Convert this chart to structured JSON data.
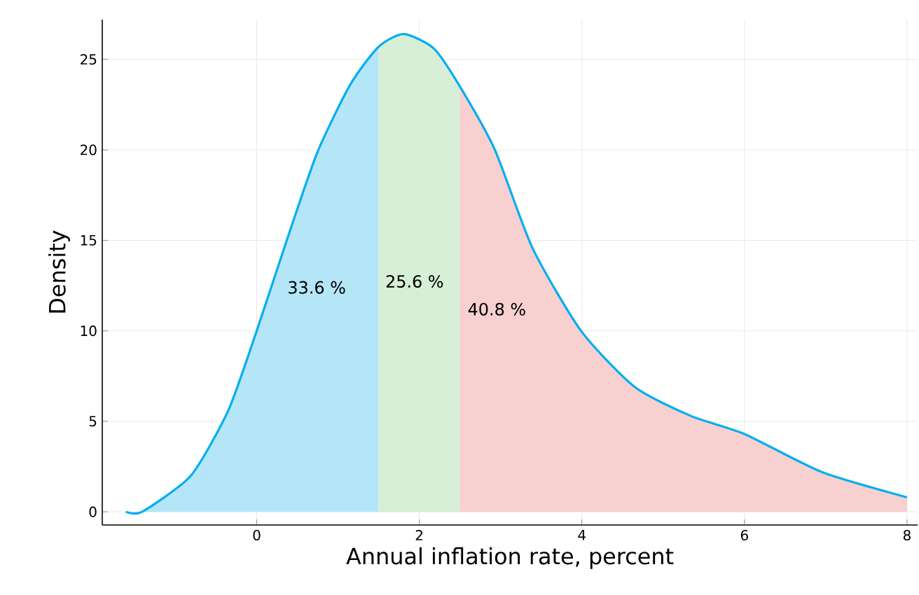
{
  "chart_data": {
    "type": "area",
    "xlabel": "Annual inflation rate, percent",
    "ylabel": "Density",
    "xlim": [
      -1.9,
      8.13
    ],
    "ylim": [
      -0.73,
      27.2
    ],
    "xticks": [
      0,
      2,
      4,
      6,
      8
    ],
    "yticks": [
      0,
      5,
      10,
      15,
      20,
      25
    ],
    "grid": true,
    "series": [
      {
        "color": "#b5e6f8",
        "x": [
          -1.61,
          -1.41,
          -0.81,
          -0.35,
          0,
          0.34,
          0.74,
          1.15,
          1.5
        ],
        "values": [
          0,
          0,
          2.0,
          5.6,
          10.0,
          14.6,
          19.8,
          23.6,
          25.7
        ]
      },
      {
        "color": "#d7eed7",
        "x": [
          1.5,
          1.81,
          2.18,
          2.5
        ],
        "values": [
          25.7,
          26.4,
          25.6,
          23.5
        ]
      },
      {
        "color": "#f8d0d0",
        "x": [
          2.5,
          2.93,
          3.39,
          3.99,
          4.65,
          5.34,
          6.0,
          6.95,
          8.0
        ],
        "values": [
          23.5,
          20.0,
          14.6,
          10.0,
          6.9,
          5.3,
          4.3,
          2.2,
          0.8
        ]
      },
      {
        "type": "line",
        "color": "#00aeef",
        "x": [
          -1.61,
          -1.41,
          -0.81,
          -0.35,
          0,
          0.34,
          0.74,
          1.15,
          1.5,
          1.81,
          2.18,
          2.5,
          2.93,
          3.39,
          3.99,
          4.65,
          5.34,
          6.0,
          6.95,
          8.0
        ],
        "values": [
          0,
          0,
          2.0,
          5.6,
          10.0,
          14.6,
          19.8,
          23.6,
          25.7,
          26.4,
          25.6,
          23.5,
          20.0,
          14.6,
          10.0,
          6.9,
          5.3,
          4.3,
          2.2,
          0.8
        ]
      }
    ],
    "annotations": [
      "33.6 %",
      "25.6 %",
      "40.8 %"
    ]
  }
}
